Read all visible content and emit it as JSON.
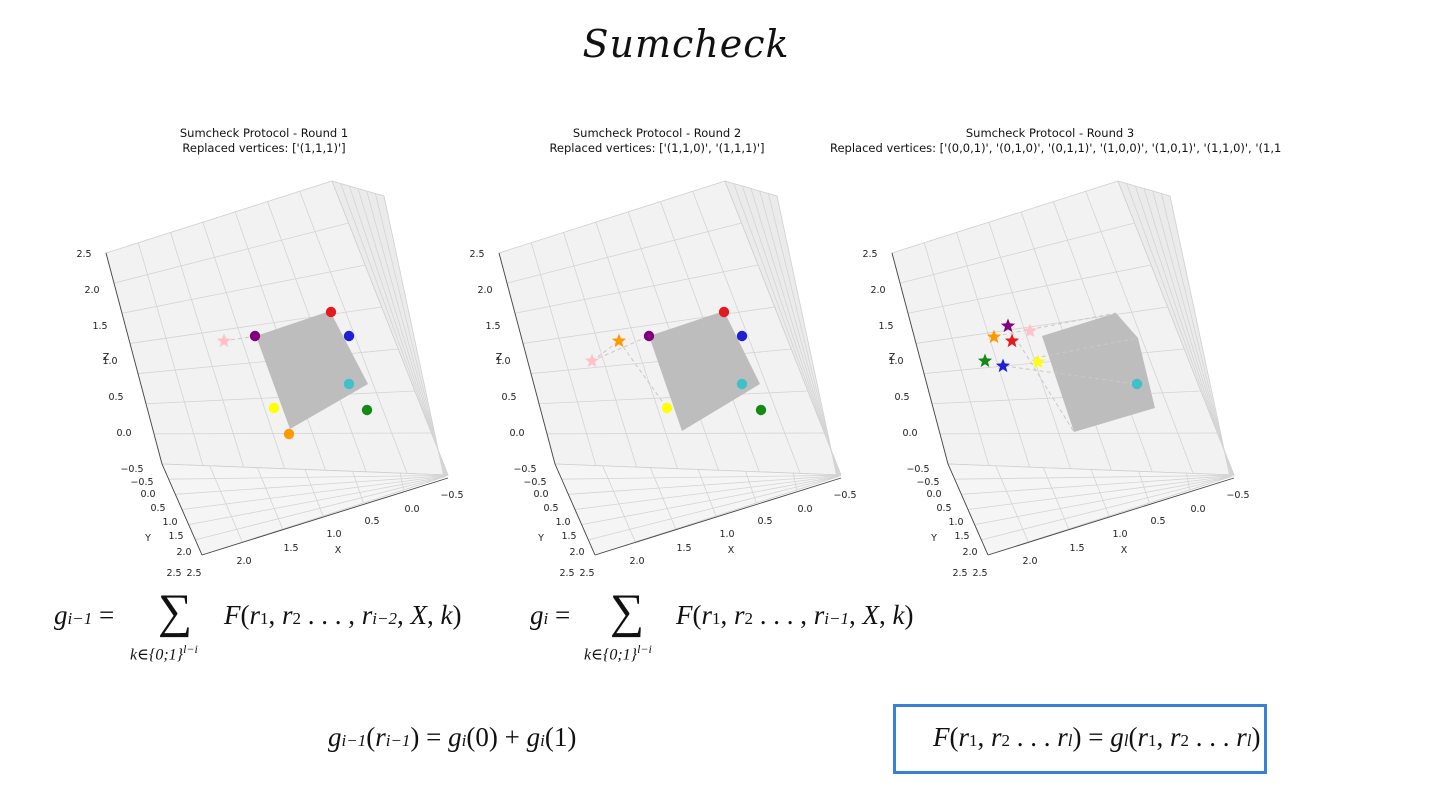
{
  "title": "Sumcheck",
  "plots": [
    {
      "title_line1": "Sumcheck Protocol - Round 1",
      "title_line2": "Replaced vertices: ['(1,1,1)']"
    },
    {
      "title_line1": "Sumcheck Protocol - Round 2",
      "title_line2": "Replaced vertices: ['(1,1,0)', '(1,1,1)']"
    },
    {
      "title_line1": "Sumcheck Protocol - Round 3",
      "title_line2": "Replaced vertices: ['(0,0,1)', '(0,1,0)', '(0,1,1)', '(1,0,0)', '(1,0,1)', '(1,1,0)', '(1,1"
    }
  ],
  "axes": {
    "z_label": "Z",
    "y_label": "Y",
    "x_label": "X",
    "z_ticks": [
      "2.5",
      "2.0",
      "1.5",
      "1.0",
      "0.5",
      "0.0",
      "−0.5"
    ],
    "y_ticks": [
      "−0.5",
      "0.0",
      "0.5",
      "1.0",
      "1.5",
      "2.0",
      "2.5"
    ],
    "x_ticks": [
      "2.5",
      "2.0",
      "1.5",
      "1.0",
      "0.5",
      "0.0",
      "−0.5"
    ]
  },
  "colors": {
    "pink": "#ffc0cb",
    "purple": "#800080",
    "red": "#e41a1c",
    "blue": "#1f1fd6",
    "cyan": "#3fc1c9",
    "green": "#138a13",
    "yellow": "#ffff00",
    "orange": "#ff9900",
    "box_border": "#3a7fd6"
  },
  "formulas": {
    "f1": {
      "lhs": "g",
      "lhs_sub": "i−1",
      "eq": " = ",
      "sum": "∑",
      "limits": "k∈{0;1}",
      "limits_sup": "l−i",
      "rhs": "F(r",
      "rhs_body": "1, r2 . . . , ri−2, X, k)"
    },
    "f2": {
      "lhs": "g",
      "lhs_sub": "i",
      "eq": " = ",
      "sum": "∑",
      "limits": "k∈{0;1}",
      "limits_sup": "l−i",
      "rhs_body": "F(r1, r2 . . . , ri−1, X, k)"
    },
    "f3": "gi−1(ri−1) = gi(0) + gi(1)",
    "f4": "F(r1, r2 . . . rl) = gl(r1, r2 . . . rl)"
  }
}
